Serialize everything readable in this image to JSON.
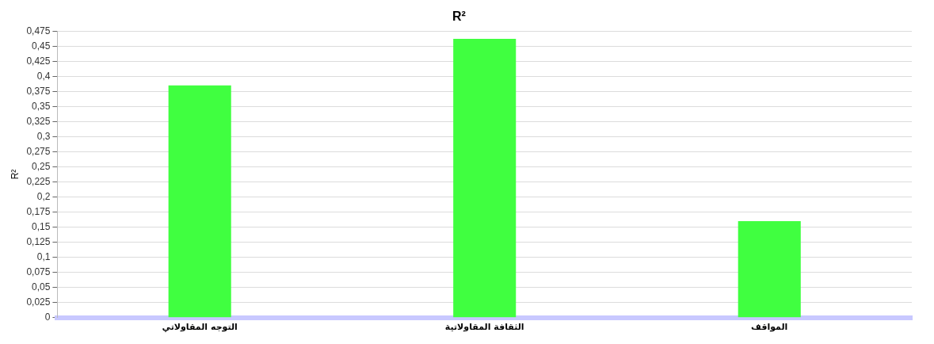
{
  "chart_data": {
    "type": "bar",
    "title": "R²",
    "ylabel": "R²",
    "categories": [
      "التوجه المقاولاتي",
      "الثقافة المقاولاتية",
      "المواقف"
    ],
    "values": [
      0.385,
      0.462,
      0.16
    ],
    "color": "#40ff40",
    "ylim": [
      0,
      0.475
    ],
    "yticks": [
      0,
      {
        "value": 0.025,
        "label": "0,025"
      },
      {
        "value": 0.05,
        "label": "0,05"
      },
      {
        "value": 0.075,
        "label": "0,075"
      },
      {
        "value": 0.1,
        "label": "0,1"
      },
      {
        "value": 0.125,
        "label": "0,125"
      },
      {
        "value": 0.15,
        "label": "0,15"
      },
      {
        "value": 0.175,
        "label": "0,175"
      },
      {
        "value": 0.2,
        "label": "0,2"
      },
      {
        "value": 0.225,
        "label": "0,225"
      },
      {
        "value": 0.25,
        "label": "0,25"
      },
      {
        "value": 0.275,
        "label": "0,275"
      },
      {
        "value": 0.3,
        "label": "0,3"
      },
      {
        "value": 0.325,
        "label": "0,325"
      },
      {
        "value": 0.35,
        "label": "0,35"
      },
      {
        "value": 0.375,
        "label": "0,375"
      },
      {
        "value": 0.4,
        "label": "0,4"
      },
      {
        "value": 0.425,
        "label": "0,425"
      },
      {
        "value": 0.45,
        "label": "0,45"
      },
      {
        "value": 0.475,
        "label": "0,475"
      }
    ],
    "grid": "y"
  }
}
